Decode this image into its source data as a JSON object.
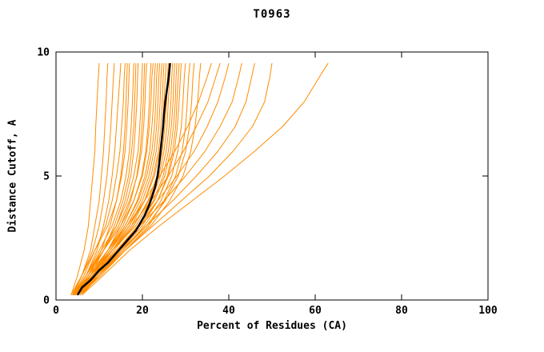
{
  "chart": {
    "title": "T0963",
    "xlabel": "Percent of Residues (CA)",
    "ylabel": "Distance Cutoff, A"
  },
  "chart_data": {
    "type": "line",
    "title": "T0963",
    "xlabel": "Percent of Residues (CA)",
    "ylabel": "Distance Cutoff, A",
    "xlim": [
      0,
      100
    ],
    "ylim": [
      0,
      10
    ],
    "xticks": [
      "0",
      "20",
      "40",
      "60",
      "80",
      "100"
    ],
    "xtick_values": [
      0,
      20,
      40,
      60,
      80,
      100
    ],
    "yticks": [
      "0",
      "5",
      "10"
    ],
    "ytick_values": [
      0,
      5,
      10
    ],
    "grid": false,
    "legend": false,
    "colors": {
      "series": "#FF8C00",
      "highlight": "#000000"
    },
    "cutoffs": [
      0.2,
      1,
      2,
      3,
      4,
      5,
      6,
      7,
      8,
      9,
      9.55
    ],
    "series": [
      {
        "name": "curve-01",
        "x": [
          3.5,
          5,
          6.5,
          7.5,
          8,
          8.5,
          9,
          9.2,
          9.5,
          9.8,
          10
        ]
      },
      {
        "name": "curve-02",
        "x": [
          4,
          6,
          8,
          9,
          10,
          10.5,
          11,
          11.3,
          11.6,
          11.8,
          12
        ]
      },
      {
        "name": "curve-03",
        "x": [
          3.8,
          6,
          8.5,
          10,
          11,
          11.8,
          12.3,
          12.7,
          13,
          13.3,
          13.5
        ]
      },
      {
        "name": "curve-04",
        "x": [
          4.2,
          7,
          9.5,
          11,
          12.2,
          13,
          13.6,
          14,
          14.4,
          14.8,
          15
        ]
      },
      {
        "name": "curve-05",
        "x": [
          4,
          6.5,
          9,
          11.5,
          13,
          14,
          14.8,
          15.2,
          15.6,
          15.8,
          16
        ]
      },
      {
        "name": "curve-06",
        "x": [
          4.5,
          7.5,
          10.5,
          12.5,
          14,
          15,
          15.6,
          16,
          16.2,
          16.4,
          16.5
        ]
      },
      {
        "name": "curve-07",
        "x": [
          3.5,
          6,
          9,
          12,
          14,
          15.2,
          16,
          16.4,
          16.7,
          16.9,
          17
        ]
      },
      {
        "name": "curve-08",
        "x": [
          4,
          7,
          10,
          13,
          15,
          16.2,
          17,
          17.4,
          17.7,
          17.9,
          18
        ]
      },
      {
        "name": "curve-09",
        "x": [
          5,
          8,
          11,
          13.5,
          15.5,
          16.8,
          17.5,
          18,
          18.2,
          18.4,
          18.5
        ]
      },
      {
        "name": "curve-10",
        "x": [
          4.5,
          7.5,
          11,
          14,
          16,
          17.3,
          18,
          18.4,
          18.7,
          18.9,
          19
        ]
      },
      {
        "name": "curve-11",
        "x": [
          4,
          7,
          10.5,
          14,
          16.5,
          18,
          19,
          19.4,
          19.7,
          19.9,
          20
        ]
      },
      {
        "name": "curve-12",
        "x": [
          5,
          8.5,
          12,
          15,
          17.3,
          18.7,
          19.5,
          19.9,
          20.2,
          20.4,
          20.5
        ]
      },
      {
        "name": "curve-13",
        "x": [
          4.2,
          7.5,
          11,
          14.5,
          17,
          18.8,
          19.8,
          20.3,
          20.6,
          20.8,
          21
        ]
      },
      {
        "name": "curve-14",
        "x": [
          4.8,
          8,
          12,
          15.5,
          18,
          19.8,
          20.8,
          21.3,
          21.6,
          21.8,
          22
        ]
      },
      {
        "name": "curve-15",
        "x": [
          4,
          7,
          11,
          15,
          18,
          20,
          21,
          21.6,
          22,
          22.2,
          22.5
        ]
      },
      {
        "name": "curve-16",
        "x": [
          5,
          8.5,
          12.5,
          16,
          18.8,
          20.6,
          21.7,
          22.2,
          22.6,
          22.8,
          23
        ]
      },
      {
        "name": "curve-17",
        "x": [
          4.5,
          8,
          12,
          16,
          19,
          21,
          22.2,
          22.8,
          23.1,
          23.3,
          23.5
        ]
      },
      {
        "name": "curve-18",
        "x": [
          4,
          7.5,
          12,
          16.5,
          19.5,
          21.5,
          22.7,
          23.3,
          23.6,
          23.8,
          24
        ]
      },
      {
        "name": "curve-19",
        "x": [
          5,
          9,
          13,
          17,
          20,
          22,
          23.2,
          23.8,
          24.1,
          24.3,
          24.5
        ]
      },
      {
        "name": "curve-20",
        "x": [
          4.5,
          8.5,
          13,
          17.5,
          20.5,
          22.5,
          23.7,
          24.3,
          24.6,
          24.8,
          25
        ]
      },
      {
        "name": "curve-21",
        "x": [
          4,
          8,
          12.5,
          17,
          20.5,
          22.8,
          24,
          24.7,
          25,
          25.3,
          25.5
        ]
      },
      {
        "name": "curve-22",
        "x": [
          5,
          9,
          13.5,
          18,
          21.3,
          23.4,
          24.6,
          25.2,
          25.6,
          25.8,
          26
        ]
      },
      {
        "name": "curve-23",
        "x": [
          4.5,
          8.5,
          13,
          18,
          21.5,
          23.8,
          25,
          25.7,
          26,
          26.3,
          26.5
        ]
      },
      {
        "name": "curve-24",
        "x": [
          4,
          8,
          13,
          18.5,
          22,
          24.2,
          25.5,
          26.2,
          26.6,
          26.8,
          27
        ]
      },
      {
        "name": "curve-25",
        "x": [
          5,
          9.5,
          14.5,
          19,
          22.5,
          24.8,
          26,
          26.7,
          27.1,
          27.3,
          27.5
        ]
      },
      {
        "name": "curve-26",
        "x": [
          4.5,
          9,
          14,
          19,
          22.8,
          25.2,
          26.5,
          27.2,
          27.6,
          27.8,
          28
        ]
      },
      {
        "name": "curve-27",
        "x": [
          5.5,
          10,
          15,
          20,
          23.5,
          25.8,
          27,
          27.7,
          28,
          28.3,
          28.5
        ]
      },
      {
        "name": "curve-28",
        "x": [
          4,
          8.5,
          14,
          19.5,
          23.5,
          26,
          27.4,
          28.1,
          28.5,
          28.8,
          29
        ]
      },
      {
        "name": "curve-29",
        "x": [
          5,
          10,
          15.5,
          20.5,
          24.3,
          26.8,
          28.2,
          29,
          29.4,
          29.7,
          30
        ]
      },
      {
        "name": "curve-30",
        "x": [
          5.5,
          10.5,
          16,
          21.5,
          25,
          27.7,
          29.2,
          30,
          30.4,
          30.7,
          31
        ]
      },
      {
        "name": "curve-31",
        "x": [
          4.5,
          9.5,
          15.5,
          21,
          25.3,
          28.3,
          30,
          30.9,
          31.4,
          31.7,
          32
        ]
      },
      {
        "name": "curve-32",
        "x": [
          5,
          10,
          16,
          22,
          26.3,
          29.4,
          31.2,
          32.2,
          32.8,
          33.2,
          33.5
        ]
      },
      {
        "name": "curve-33",
        "x": [
          5,
          8.5,
          12.5,
          16.5,
          20.5,
          24,
          27.5,
          30.5,
          33,
          35,
          36
        ]
      },
      {
        "name": "curve-34",
        "x": [
          5.5,
          9,
          13,
          17.5,
          22,
          26,
          29.5,
          32.5,
          35.2,
          37,
          38
        ]
      },
      {
        "name": "curve-35",
        "x": [
          6,
          9.5,
          14,
          19,
          23.5,
          28,
          32,
          35,
          37.5,
          39.2,
          40
        ]
      },
      {
        "name": "curve-36",
        "x": [
          5,
          9,
          14,
          19.5,
          25,
          30,
          34.5,
          38,
          40.8,
          42.3,
          43
        ]
      },
      {
        "name": "curve-37",
        "x": [
          6,
          10,
          15,
          21,
          27,
          32.5,
          37.5,
          41.5,
          44,
          45.3,
          46
        ]
      },
      {
        "name": "curve-38",
        "x": [
          5.5,
          10,
          16,
          22.5,
          29,
          35.5,
          41,
          45.5,
          48.3,
          49.5,
          50
        ]
      },
      {
        "name": "curve-39",
        "x": [
          6,
          11,
          17,
          24,
          31.5,
          39,
          46,
          52.5,
          57.5,
          61,
          63
        ]
      }
    ],
    "highlight_series": {
      "name": "black-curve",
      "points": [
        [
          5,
          0.2
        ],
        [
          6,
          0.5
        ],
        [
          8,
          0.8
        ],
        [
          10,
          1.2
        ],
        [
          12,
          1.5
        ],
        [
          14,
          1.9
        ],
        [
          15.5,
          2.2
        ],
        [
          17,
          2.5
        ],
        [
          18.5,
          2.8
        ],
        [
          19.5,
          3.1
        ],
        [
          20.5,
          3.4
        ],
        [
          21.5,
          3.8
        ],
        [
          22.3,
          4.2
        ],
        [
          23,
          4.6
        ],
        [
          23.5,
          5
        ],
        [
          23.9,
          5.5
        ],
        [
          24.2,
          6
        ],
        [
          24.5,
          6.5
        ],
        [
          24.8,
          7
        ],
        [
          25,
          7.5
        ],
        [
          25.3,
          8
        ],
        [
          25.7,
          8.5
        ],
        [
          26.1,
          9
        ],
        [
          26.4,
          9.55
        ]
      ]
    }
  }
}
